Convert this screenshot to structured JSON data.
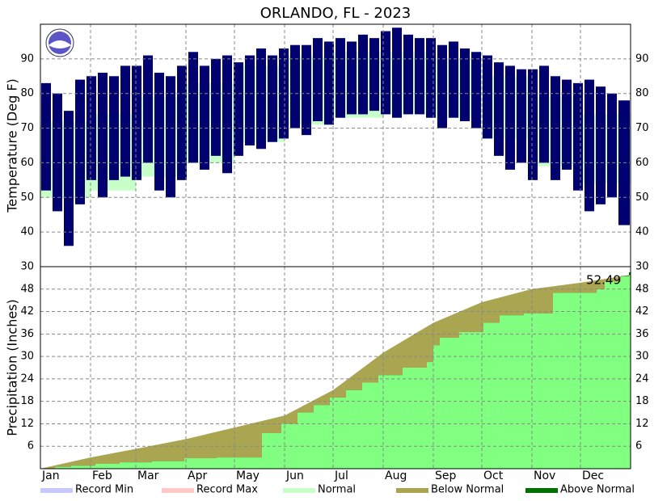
{
  "chart_data": [
    {
      "type": "bar",
      "title": "ORLANDO, FL - 2023",
      "ylabel": "Temperature (Deg F)",
      "xlim": [
        1,
        366
      ],
      "ylim": [
        30,
        100
      ],
      "yticks": [
        30,
        40,
        50,
        60,
        70,
        80,
        90
      ],
      "grid": true,
      "x": [
        1,
        8,
        15,
        22,
        29,
        36,
        43,
        50,
        57,
        64,
        71,
        78,
        85,
        92,
        99,
        106,
        113,
        120,
        127,
        134,
        141,
        148,
        155,
        162,
        169,
        176,
        183,
        190,
        197,
        204,
        211,
        218,
        225,
        232,
        239,
        246,
        253,
        260,
        267,
        274,
        281,
        288,
        295,
        302,
        309,
        316,
        323,
        330,
        337,
        344,
        351,
        358
      ],
      "observed": {
        "color": "#000070",
        "high": [
          83,
          80,
          75,
          84,
          85,
          86,
          85,
          88,
          88,
          91,
          86,
          85,
          88,
          92,
          88,
          90,
          91,
          89,
          91,
          93,
          91,
          93,
          94,
          94,
          96,
          95,
          96,
          95,
          97,
          96,
          98,
          99,
          97,
          96,
          96,
          94,
          95,
          93,
          92,
          91,
          89,
          88,
          87,
          87,
          88,
          85,
          84,
          83,
          84,
          82,
          80,
          78
        ],
        "low": [
          52,
          46,
          36,
          48,
          55,
          50,
          55,
          56,
          55,
          60,
          52,
          50,
          55,
          60,
          58,
          62,
          57,
          62,
          65,
          64,
          66,
          67,
          70,
          68,
          72,
          71,
          73,
          74,
          74,
          75,
          74,
          73,
          74,
          74,
          73,
          70,
          73,
          72,
          70,
          67,
          62,
          58,
          60,
          55,
          60,
          55,
          58,
          52,
          46,
          48,
          50,
          42
        ]
      },
      "normal": {
        "x": [
          1,
          32,
          60,
          91,
          121,
          152,
          182,
          213,
          244,
          274,
          305,
          335
        ],
        "high": [
          72,
          74,
          79,
          83,
          88,
          91,
          92,
          92,
          90,
          85,
          79,
          74
        ],
        "low": [
          50,
          52,
          56,
          60,
          66,
          71,
          73,
          74,
          73,
          67,
          59,
          54
        ]
      },
      "legend": [
        {
          "name": "Record Min",
          "color": "#c8c8ff"
        },
        {
          "name": "Record Max",
          "color": "#ffc8c8"
        },
        {
          "name": "Normal",
          "color": "#c8ffc8"
        },
        {
          "name": "Below Normal",
          "color": "#aaa550"
        },
        {
          "name": "Above Normal",
          "color": "#007000"
        }
      ]
    },
    {
      "type": "area",
      "ylabel": "Precipitation (Inches)",
      "xlim": [
        1,
        366
      ],
      "ylim": [
        0,
        54
      ],
      "yticks": [
        6,
        12,
        18,
        24,
        30,
        36,
        42,
        48
      ],
      "grid": true,
      "xticks": [
        {
          "value": 1,
          "label": "Jan"
        },
        {
          "value": 32,
          "label": "Feb"
        },
        {
          "value": 60,
          "label": "Mar"
        },
        {
          "value": 91,
          "label": "Apr"
        },
        {
          "value": 121,
          "label": "May"
        },
        {
          "value": 152,
          "label": "Jun"
        },
        {
          "value": 182,
          "label": "Jul"
        },
        {
          "value": 213,
          "label": "Aug"
        },
        {
          "value": 244,
          "label": "Sep"
        },
        {
          "value": 274,
          "label": "Oct"
        },
        {
          "value": 305,
          "label": "Nov"
        },
        {
          "value": 335,
          "label": "Dec"
        }
      ],
      "normal": {
        "x": [
          1,
          32,
          60,
          91,
          121,
          152,
          182,
          213,
          244,
          274,
          305,
          335,
          366
        ],
        "values": [
          0,
          3,
          5.3,
          7.9,
          11,
          14.2,
          21,
          31,
          39,
          44.5,
          48,
          49.7,
          51.8
        ]
      },
      "observed": {
        "color": "#80ff80",
        "x": [
          1,
          10,
          20,
          35,
          50,
          70,
          90,
          110,
          138,
          150,
          160,
          170,
          180,
          190,
          200,
          210,
          225,
          240,
          244,
          248,
          260,
          275,
          285,
          300,
          318,
          345,
          350,
          360,
          365
        ],
        "values": [
          0,
          0.5,
          0.8,
          1.3,
          1.7,
          2,
          2.8,
          3,
          9.5,
          12,
          15,
          17,
          19,
          21,
          23,
          25,
          27,
          28.5,
          33,
          35,
          36.5,
          39,
          41,
          41.5,
          47,
          48,
          50,
          51.5,
          52.49
        ]
      }
    }
  ]
}
